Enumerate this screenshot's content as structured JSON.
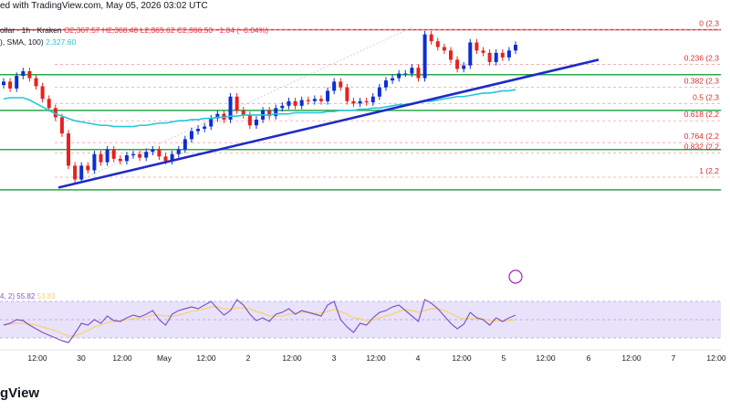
{
  "header": {
    "text": "ed with TradingView.com, May 05, 2026 03:02 UTC"
  },
  "legend": {
    "symbol": "ollar · 1h · Kraken",
    "open": "O2,367.57",
    "high": "H2,368.40",
    "low": "L2,365.62",
    "close": "C2,366.50",
    "change": "−1.04 (−0.04%)",
    "sma_label": "), SMA, 100)",
    "sma_value": "2,327.60"
  },
  "rsi_legend": {
    "label": "4, 2)",
    "value": "55.82",
    "ma_value": "53.83"
  },
  "footer": {
    "logo": "gView"
  },
  "colors": {
    "up": "#0b2fd0",
    "down": "#e5221f",
    "sma": "#26c6da",
    "trendline": "#1e2bc8",
    "hline": "#2ca84a",
    "resistance": "#d32f2f",
    "rsi": "#7e57c2",
    "rsi_ma": "#f5d36e",
    "rsi_band": "#e9e2fb",
    "axis_text": "#131722"
  },
  "chart_data": {
    "type": "candlestick",
    "timeframe": "1h",
    "y_range": [
      2160,
      2390
    ],
    "x_tick_labels": [
      "12:00",
      "30",
      "12:00",
      "May",
      "12:00",
      "2",
      "12:00",
      "3",
      "12:00",
      "4",
      "12:00",
      "5",
      "12:00",
      "6",
      "12:00",
      "7",
      "12:00"
    ],
    "fib_levels": [
      {
        "label": "0 (2,3",
        "price": 2380
      },
      {
        "label": "0.236 (2,3",
        "price": 2350
      },
      {
        "label": "0.382 (2,3",
        "price": 2330
      },
      {
        "label": "0.5 (2,3",
        "price": 2316
      },
      {
        "label": "0.618 (2,2",
        "price": 2301
      },
      {
        "label": "0.764 (2,2",
        "price": 2282
      },
      {
        "label": "0.832 (2,2",
        "price": 2273
      },
      {
        "label": "1 (2,2",
        "price": 2252
      }
    ],
    "horizontal_levels": [
      2341,
      2310,
      2276,
      2241
    ],
    "resistance_level": 2380,
    "trendline": {
      "start": [
        0.08,
        2243
      ],
      "end": [
        0.82,
        2354
      ]
    },
    "closes": [
      2335,
      2329,
      2340,
      2344,
      2338,
      2331,
      2320,
      2312,
      2304,
      2290,
      2262,
      2250,
      2262,
      2258,
      2272,
      2265,
      2276,
      2268,
      2266,
      2271,
      2272,
      2269,
      2274,
      2276,
      2270,
      2266,
      2272,
      2276,
      2285,
      2292,
      2294,
      2296,
      2303,
      2307,
      2302,
      2322,
      2310,
      2306,
      2297,
      2302,
      2310,
      2305,
      2312,
      2314,
      2318,
      2314,
      2319,
      2318,
      2320,
      2318,
      2327,
      2335,
      2330,
      2318,
      2316,
      2318,
      2317,
      2322,
      2330,
      2336,
      2338,
      2342,
      2342,
      2347,
      2338,
      2376,
      2370,
      2365,
      2362,
      2354,
      2346,
      2349,
      2369,
      2362,
      2360,
      2352,
      2360,
      2356,
      2362,
      2367
    ],
    "sma100": [
      2320,
      2321,
      2321,
      2321,
      2319,
      2316,
      2313,
      2310,
      2307,
      2305,
      2303,
      2301,
      2300,
      2299,
      2298,
      2297,
      2297,
      2296,
      2296,
      2296,
      2296,
      2297,
      2297,
      2298,
      2299,
      2299,
      2300,
      2301,
      2301,
      2302,
      2302,
      2303,
      2303,
      2304,
      2304,
      2305,
      2305,
      2306,
      2306,
      2306,
      2306,
      2306,
      2307,
      2307,
      2307,
      2308,
      2308,
      2308,
      2308,
      2308,
      2309,
      2309,
      2310,
      2310,
      2310,
      2311,
      2311,
      2312,
      2312,
      2313,
      2314,
      2315,
      2315,
      2316,
      2317,
      2318,
      2318,
      2319,
      2320,
      2321,
      2322,
      2322,
      2323,
      2324,
      2325,
      2325,
      2326,
      2327,
      2327,
      2328
    ],
    "rsi": [
      44,
      46,
      50,
      49,
      44,
      40,
      36,
      33,
      30,
      27,
      25,
      35,
      46,
      44,
      50,
      46,
      54,
      49,
      48,
      52,
      55,
      53,
      56,
      60,
      50,
      44,
      56,
      60,
      62,
      64,
      62,
      66,
      70,
      62,
      55,
      60,
      72,
      66,
      56,
      49,
      52,
      48,
      56,
      58,
      62,
      56,
      60,
      58,
      56,
      54,
      66,
      70,
      50,
      42,
      36,
      46,
      44,
      52,
      58,
      60,
      64,
      66,
      60,
      54,
      48,
      72,
      68,
      62,
      54,
      46,
      40,
      45,
      58,
      52,
      50,
      44,
      52,
      48,
      52,
      55
    ],
    "rsi_ma": [
      45,
      45,
      46,
      46,
      45,
      44,
      42,
      40,
      38,
      35,
      32,
      32,
      35,
      38,
      42,
      44,
      47,
      48,
      49,
      50,
      51,
      52,
      53,
      55,
      55,
      54,
      54,
      55,
      57,
      59,
      60,
      62,
      64,
      64,
      62,
      61,
      63,
      63,
      62,
      59,
      57,
      54,
      54,
      54,
      56,
      57,
      58,
      58,
      57,
      57,
      59,
      61,
      59,
      56,
      52,
      51,
      49,
      50,
      52,
      54,
      56,
      59,
      61,
      60,
      58,
      60,
      62,
      62,
      60,
      57,
      53,
      51,
      51,
      51,
      51,
      49,
      49,
      48,
      49,
      50
    ]
  }
}
